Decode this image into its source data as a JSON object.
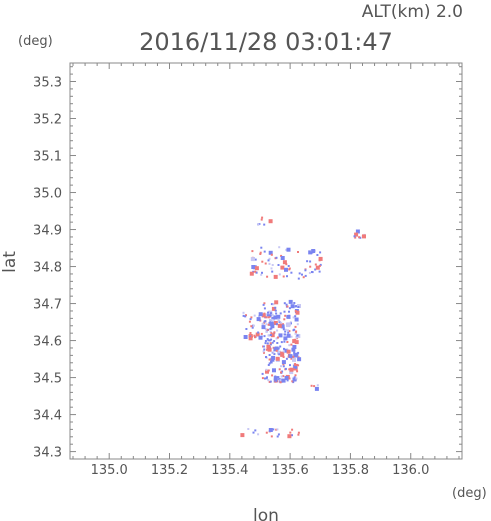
{
  "header": {
    "alt_label": "ALT(km) 2.0",
    "datetime": "2016/11/28 03:01:47"
  },
  "chart_data": {
    "type": "scatter",
    "title": "2016/11/28 03:01:47",
    "subtitle": "ALT(km) 2.0",
    "xlabel": "lon",
    "ylabel": "lat",
    "x_unit": "(deg)",
    "y_unit": "(deg)",
    "xlim": [
      134.87,
      136.17
    ],
    "ylim": [
      34.28,
      35.35
    ],
    "x_ticks": [
      135.0,
      135.2,
      135.4,
      135.6,
      135.8,
      136.0
    ],
    "x_tick_labels": [
      "135.0",
      "135.2",
      "135.4",
      "135.6",
      "135.8",
      "136.0"
    ],
    "y_ticks": [
      34.3,
      34.4,
      34.5,
      34.6,
      34.7,
      34.8,
      34.9,
      35.0,
      35.1,
      35.2,
      35.3
    ],
    "y_tick_labels": [
      "34.3",
      "34.4",
      "34.5",
      "34.6",
      "34.7",
      "34.8",
      "34.9",
      "35.0",
      "35.1",
      "35.2",
      "35.3"
    ],
    "grid": false,
    "colors": {
      "positive": "#f07a7a",
      "negative": "#7a84f0",
      "axis": "#888888",
      "text": "#555555"
    },
    "clusters": [
      {
        "lon": 135.565,
        "lat": 34.6,
        "spread_lon": 0.06,
        "spread_lat": 0.11,
        "count": 260
      },
      {
        "lon": 135.49,
        "lat": 34.645,
        "spread_lon": 0.05,
        "spread_lat": 0.035,
        "count": 60
      },
      {
        "lon": 135.535,
        "lat": 34.815,
        "spread_lon": 0.07,
        "spread_lat": 0.04,
        "count": 55
      },
      {
        "lon": 135.66,
        "lat": 34.81,
        "spread_lon": 0.04,
        "spread_lat": 0.04,
        "count": 30
      },
      {
        "lon": 135.51,
        "lat": 34.925,
        "spread_lon": 0.02,
        "spread_lat": 0.01,
        "count": 8
      },
      {
        "lon": 135.83,
        "lat": 34.89,
        "spread_lon": 0.02,
        "spread_lat": 0.015,
        "count": 10
      },
      {
        "lon": 135.52,
        "lat": 34.355,
        "spread_lon": 0.11,
        "spread_lat": 0.012,
        "count": 20
      },
      {
        "lon": 135.68,
        "lat": 34.48,
        "spread_lon": 0.012,
        "spread_lat": 0.008,
        "count": 4
      }
    ]
  }
}
